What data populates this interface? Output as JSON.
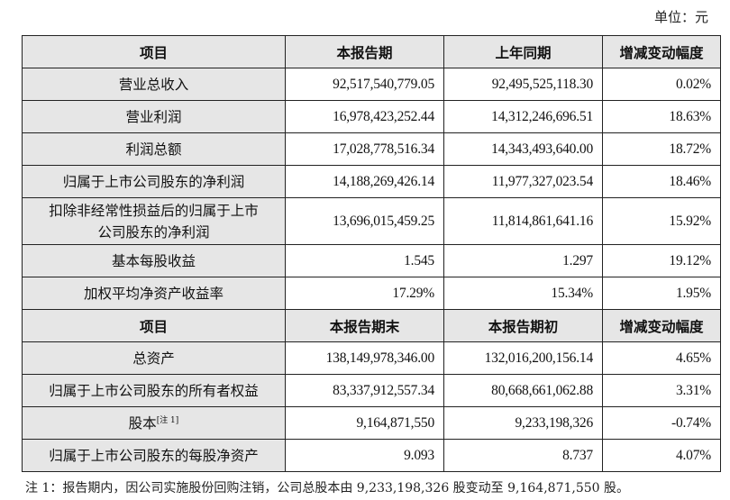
{
  "unit_label": "单位：元",
  "section1": {
    "headers": [
      "项目",
      "本报告期",
      "上年同期",
      "增减变动幅度"
    ],
    "rows": [
      {
        "item": "营业总收入",
        "current": "92,517,540,779.05",
        "prior": "92,495,525,118.30",
        "change": "0.02%"
      },
      {
        "item": "营业利润",
        "current": "16,978,423,252.44",
        "prior": "14,312,246,696.51",
        "change": "18.63%"
      },
      {
        "item": "利润总额",
        "current": "17,028,778,516.34",
        "prior": "14,343,493,640.00",
        "change": "18.72%"
      },
      {
        "item": "归属于上市公司股东的净利润",
        "current": "14,188,269,426.14",
        "prior": "11,977,327,023.54",
        "change": "18.46%"
      },
      {
        "item_line1": "扣除非经常性损益后的归属于上市",
        "item_line2": "公司股东的净利润",
        "current": "13,696,015,459.25",
        "prior": "11,814,861,641.16",
        "change": "15.92%"
      },
      {
        "item": "基本每股收益",
        "current": "1.545",
        "prior": "1.297",
        "change": "19.12%"
      },
      {
        "item": "加权平均净资产收益率",
        "current": "17.29%",
        "prior": "15.34%",
        "change": "1.95%"
      }
    ]
  },
  "section2": {
    "headers": [
      "项目",
      "本报告期末",
      "本报告期初",
      "增减变动幅度"
    ],
    "rows": [
      {
        "item": "总资产",
        "current": "138,149,978,346.00",
        "prior": "132,016,200,156.14",
        "change": "4.65%"
      },
      {
        "item": "归属于上市公司股东的所有者权益",
        "current": "83,337,912,557.34",
        "prior": "80,668,661,062.88",
        "change": "3.31%"
      },
      {
        "item": "股本",
        "item_sup": "[注 1]",
        "current": "9,164,871,550",
        "prior": "9,233,198,326",
        "change": "-0.74%"
      },
      {
        "item": "归属于上市公司股东的每股净资产",
        "current": "9.093",
        "prior": "8.737",
        "change": "4.07%"
      }
    ]
  },
  "footnote": "注 1：报告期内，因公司实施股份回购注销，公司总股本由 9,233,198,326 股变动至 9,164,871,550 股。",
  "colors": {
    "label_bg": "#e6e6e6",
    "border": "#222222"
  }
}
